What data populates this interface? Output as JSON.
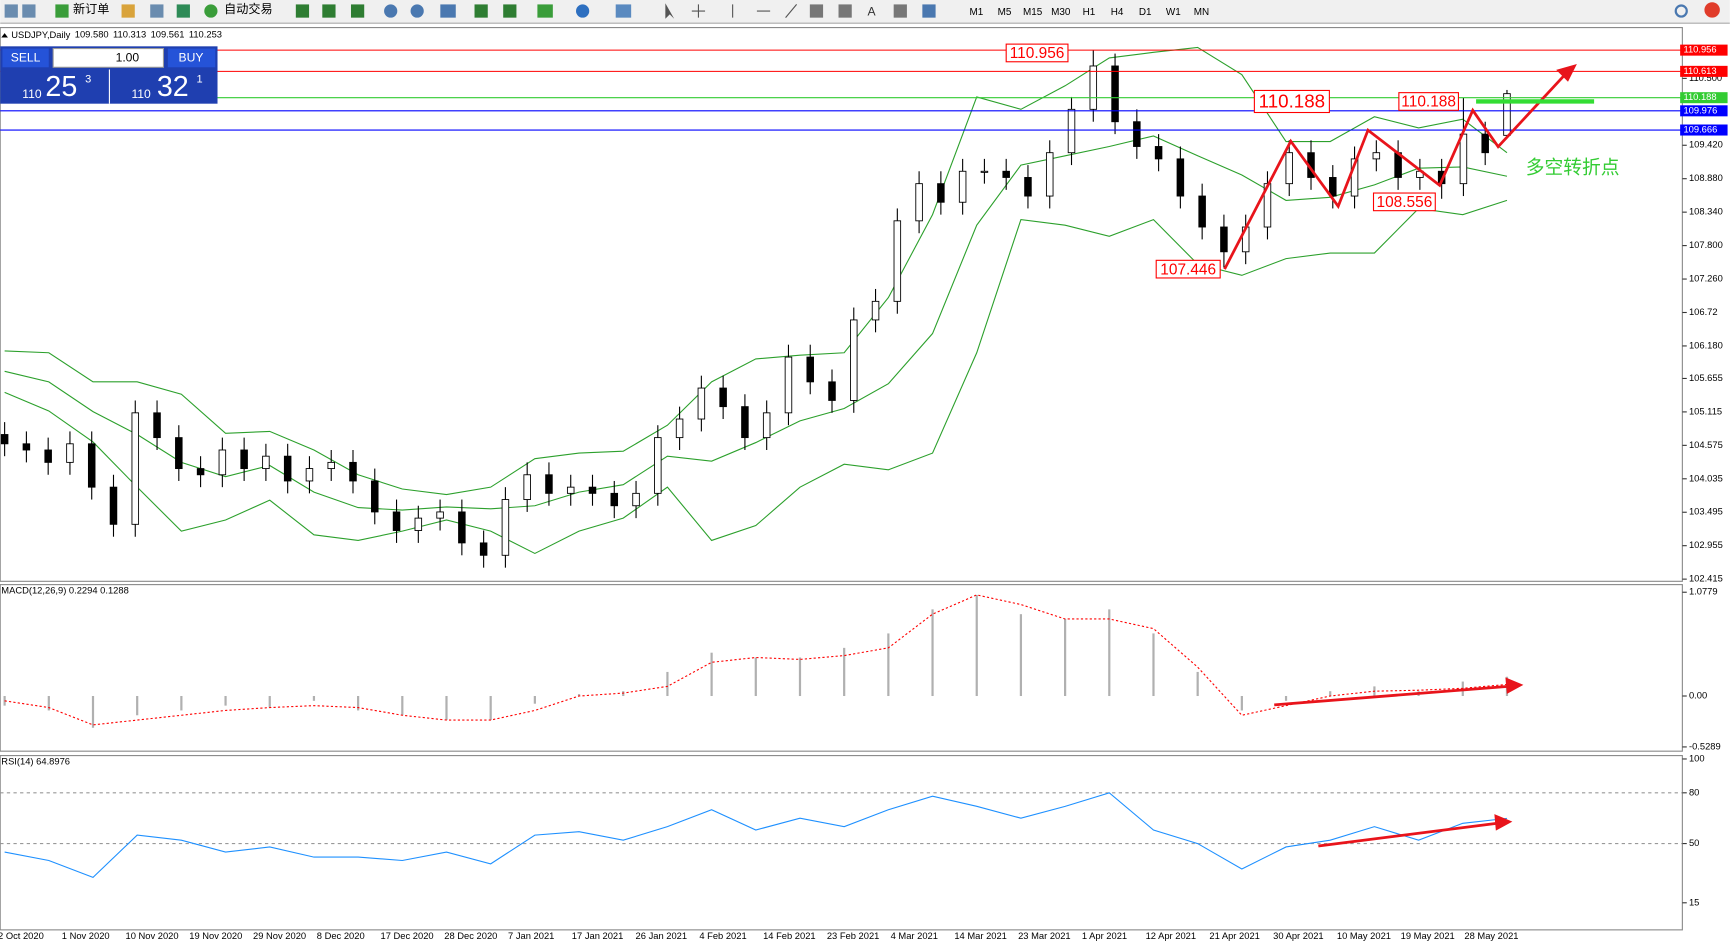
{
  "toolbar": {
    "new_order": "新订单",
    "auto_trading": "自动交易",
    "timeframes": [
      "M1",
      "M5",
      "M15",
      "M30",
      "H1",
      "H4",
      "D1",
      "W1",
      "MN"
    ]
  },
  "trade_panel": {
    "sell": "SELL",
    "buy": "BUY",
    "lot": "1.00",
    "sell_price": [
      "110",
      "25",
      "3"
    ],
    "buy_price": [
      "110",
      "32",
      "1"
    ]
  },
  "chart_data": [
    {
      "type": "candlestick",
      "title": "USDJPY,Daily",
      "ohlc_labels": [
        "109.580",
        "110.313",
        "109.561",
        "110.253"
      ],
      "open": [
        104.75,
        104.6,
        104.5,
        104.3,
        104.6,
        103.9,
        103.3,
        105.1,
        104.7,
        104.2,
        104.1,
        104.5,
        104.2,
        104.4,
        104.0,
        104.2,
        104.3,
        104.0,
        103.5,
        103.2,
        103.4,
        103.5,
        103.0,
        102.8,
        103.7,
        104.1,
        103.8,
        103.9,
        103.8,
        103.6,
        103.8,
        104.7,
        105.0,
        105.5,
        105.2,
        104.7,
        105.1,
        106.0,
        105.6,
        105.3,
        106.6,
        106.9,
        108.2,
        108.8,
        108.5,
        109.0,
        109.0,
        108.9,
        108.6,
        109.3,
        110.0,
        110.7,
        109.8,
        109.4,
        109.2,
        108.6,
        108.1,
        107.7,
        108.1,
        108.8,
        109.3,
        108.9,
        108.6,
        109.2,
        109.3,
        108.9,
        109.0,
        108.8,
        109.6,
        109.58
      ],
      "high": [
        104.95,
        104.8,
        104.7,
        104.8,
        104.8,
        104.1,
        105.3,
        105.3,
        104.9,
        104.4,
        104.7,
        104.7,
        104.6,
        104.6,
        104.4,
        104.5,
        104.5,
        104.2,
        103.7,
        103.6,
        103.7,
        103.7,
        103.2,
        103.9,
        104.3,
        104.3,
        104.1,
        104.1,
        104.0,
        104.0,
        104.9,
        105.2,
        105.7,
        105.7,
        105.4,
        105.3,
        106.2,
        106.2,
        105.8,
        106.8,
        107.1,
        108.4,
        109.0,
        109.0,
        109.2,
        109.2,
        109.2,
        109.1,
        109.5,
        110.2,
        110.956,
        110.9,
        110.0,
        109.6,
        109.4,
        108.8,
        108.3,
        108.3,
        109.0,
        109.5,
        109.5,
        109.1,
        109.4,
        109.5,
        109.5,
        109.2,
        109.2,
        110.188,
        109.8,
        110.313
      ],
      "low": [
        104.4,
        104.3,
        104.1,
        104.1,
        103.7,
        103.1,
        103.1,
        104.5,
        104.0,
        103.9,
        103.9,
        104.0,
        104.0,
        103.8,
        103.8,
        104.0,
        103.8,
        103.3,
        103.0,
        103.0,
        103.2,
        102.8,
        102.6,
        102.6,
        103.5,
        103.6,
        103.6,
        103.6,
        103.4,
        103.4,
        103.6,
        104.5,
        104.8,
        105.0,
        104.5,
        104.5,
        104.9,
        105.4,
        105.1,
        105.1,
        106.4,
        106.7,
        108.0,
        108.3,
        108.3,
        108.8,
        108.7,
        108.4,
        108.4,
        109.1,
        109.8,
        109.6,
        109.2,
        109.0,
        108.4,
        107.9,
        107.446,
        107.5,
        107.9,
        108.6,
        108.7,
        108.4,
        108.4,
        109.0,
        108.7,
        108.7,
        108.556,
        108.6,
        109.1,
        109.561
      ],
      "close": [
        104.6,
        104.5,
        104.3,
        104.6,
        103.9,
        103.3,
        105.1,
        104.7,
        104.2,
        104.1,
        104.5,
        104.2,
        104.4,
        104.0,
        104.2,
        104.3,
        104.0,
        103.5,
        103.2,
        103.4,
        103.5,
        103.0,
        102.8,
        103.7,
        104.1,
        103.8,
        103.9,
        103.8,
        103.6,
        103.8,
        104.7,
        105.0,
        105.5,
        105.2,
        104.7,
        105.1,
        106.0,
        105.6,
        105.3,
        106.6,
        106.9,
        108.2,
        108.8,
        108.5,
        109.0,
        109.0,
        108.9,
        108.6,
        109.3,
        110.0,
        110.7,
        109.8,
        109.4,
        109.2,
        108.6,
        108.1,
        107.7,
        108.1,
        108.8,
        109.3,
        108.9,
        108.6,
        109.2,
        109.3,
        108.9,
        109.0,
        108.8,
        109.6,
        109.3,
        110.253
      ],
      "bands": {
        "color": "#2ca02c",
        "upper": [
          106.1,
          106.07,
          105.6,
          105.6,
          105.4,
          104.77,
          104.8,
          104.5,
          104.1,
          103.87,
          103.78,
          103.9,
          104.36,
          104.45,
          104.48,
          104.9,
          105.6,
          105.97,
          106.03,
          106.07,
          106.96,
          108.3,
          110.2,
          110.0,
          110.38,
          110.83,
          110.92,
          111.0,
          110.56,
          109.48,
          109.48,
          109.88,
          109.7,
          109.84,
          109.3
        ],
        "middle": [
          105.77,
          105.6,
          105.12,
          104.75,
          104.3,
          104.07,
          104.25,
          103.82,
          103.57,
          103.53,
          103.58,
          103.55,
          103.6,
          103.82,
          103.94,
          104.4,
          104.32,
          104.62,
          104.97,
          105.17,
          105.57,
          106.38,
          108.13,
          109.1,
          109.25,
          109.4,
          109.57,
          109.25,
          108.94,
          108.53,
          108.58,
          108.78,
          109.05,
          109.07,
          108.92
        ],
        "lower": [
          105.43,
          105.13,
          104.63,
          103.9,
          103.19,
          103.37,
          103.69,
          103.13,
          103.04,
          103.19,
          103.37,
          103.19,
          102.83,
          103.19,
          103.4,
          103.9,
          103.04,
          103.28,
          103.9,
          104.27,
          104.18,
          104.45,
          106.07,
          108.22,
          108.13,
          107.95,
          108.22,
          107.5,
          107.32,
          107.59,
          107.68,
          107.68,
          108.4,
          108.3,
          108.53
        ]
      },
      "ylim": [
        102.38,
        111.32
      ],
      "yticks": [
        {
          "value": 110.5,
          "label": "110.500"
        },
        {
          "value": 109.42,
          "label": "109.420"
        },
        {
          "value": 108.88,
          "label": "108.880"
        },
        {
          "value": 108.34,
          "label": "108.340"
        },
        {
          "value": 107.8,
          "label": "107.800"
        },
        {
          "value": 107.26,
          "label": "107.260"
        },
        106.72,
        {
          "value": 106.18,
          "label": "106.180"
        },
        105.655,
        105.115,
        104.575,
        104.035,
        103.495,
        102.955,
        102.415
      ],
      "hlines": [
        {
          "value": 110.956,
          "color": "#ff0000"
        },
        {
          "value": 110.613,
          "color": "#ff0000"
        },
        {
          "value": 110.188,
          "color": "#33cc33"
        },
        {
          "value": 109.976,
          "color": "#0000ff"
        },
        {
          "value": 109.666,
          "color": "#0000ff"
        }
      ],
      "annotations": [
        "110.956",
        "110.188",
        "110.188",
        "107.446",
        "108.556",
        "多空转折点"
      ],
      "date_labels": [
        "2 Oct 2020",
        "1 Nov 2020",
        "10 Nov 2020",
        "19 Nov 2020",
        "29 Nov 2020",
        "8 Dec 2020",
        "17 Dec 2020",
        "28 Dec 2020",
        "7 Jan 2021",
        "17 Jan 2021",
        "26 Jan 2021",
        "4 Feb 2021",
        "14 Feb 2021",
        "23 Feb 2021",
        "4 Mar 2021",
        "14 Mar 2021",
        "23 Mar 2021",
        "1 Apr 2021",
        "12 Apr 2021",
        "21 Apr 2021",
        "30 Apr 2021",
        "10 May 2021",
        "19 May 2021",
        "28 May 2021"
      ]
    },
    {
      "type": "macd",
      "title": "MACD(12,26,9) 0.2294 0.1288",
      "histogram": [
        -0.1,
        -0.15,
        -0.33,
        -0.2,
        -0.15,
        -0.1,
        -0.12,
        -0.05,
        -0.15,
        -0.2,
        -0.25,
        -0.25,
        -0.08,
        0.02,
        0.05,
        0.25,
        0.45,
        0.4,
        0.4,
        0.5,
        0.65,
        0.9,
        1.05,
        0.85,
        0.8,
        0.9,
        0.65,
        0.25,
        -0.15,
        -0.05,
        0.05,
        0.1,
        0.05,
        0.15,
        0.2
      ],
      "signal": [
        -0.05,
        -0.12,
        -0.3,
        -0.25,
        -0.2,
        -0.15,
        -0.12,
        -0.1,
        -0.12,
        -0.2,
        -0.25,
        -0.25,
        -0.15,
        0.0,
        0.03,
        0.1,
        0.35,
        0.4,
        0.38,
        0.42,
        0.5,
        0.85,
        1.05,
        0.95,
        0.8,
        0.8,
        0.7,
        0.3,
        -0.2,
        -0.1,
        0.0,
        0.05,
        0.06,
        0.08,
        0.12
      ],
      "histogram_color": "#b0b0b0",
      "signal_color": "#ff0000",
      "ylim": [
        -0.573,
        1.157
      ],
      "yticks": [
        1.0779,
        {
          "value": 0,
          "label": "0.00"
        },
        -0.5289
      ]
    },
    {
      "type": "line",
      "title": "RSI(14) 64.8976",
      "values": [
        45,
        40,
        30,
        55,
        52,
        45,
        48,
        42,
        42,
        40,
        45,
        38,
        55,
        57,
        52,
        60,
        70,
        58,
        65,
        60,
        70,
        78,
        72,
        65,
        72,
        80,
        58,
        50,
        35,
        48,
        52,
        60,
        52,
        62,
        64.8976
      ],
      "color": "#1e90ff",
      "ylim": [
        -1,
        102
      ],
      "yticks": [
        100,
        80,
        50,
        15
      ],
      "levels": [
        80,
        50
      ]
    }
  ]
}
